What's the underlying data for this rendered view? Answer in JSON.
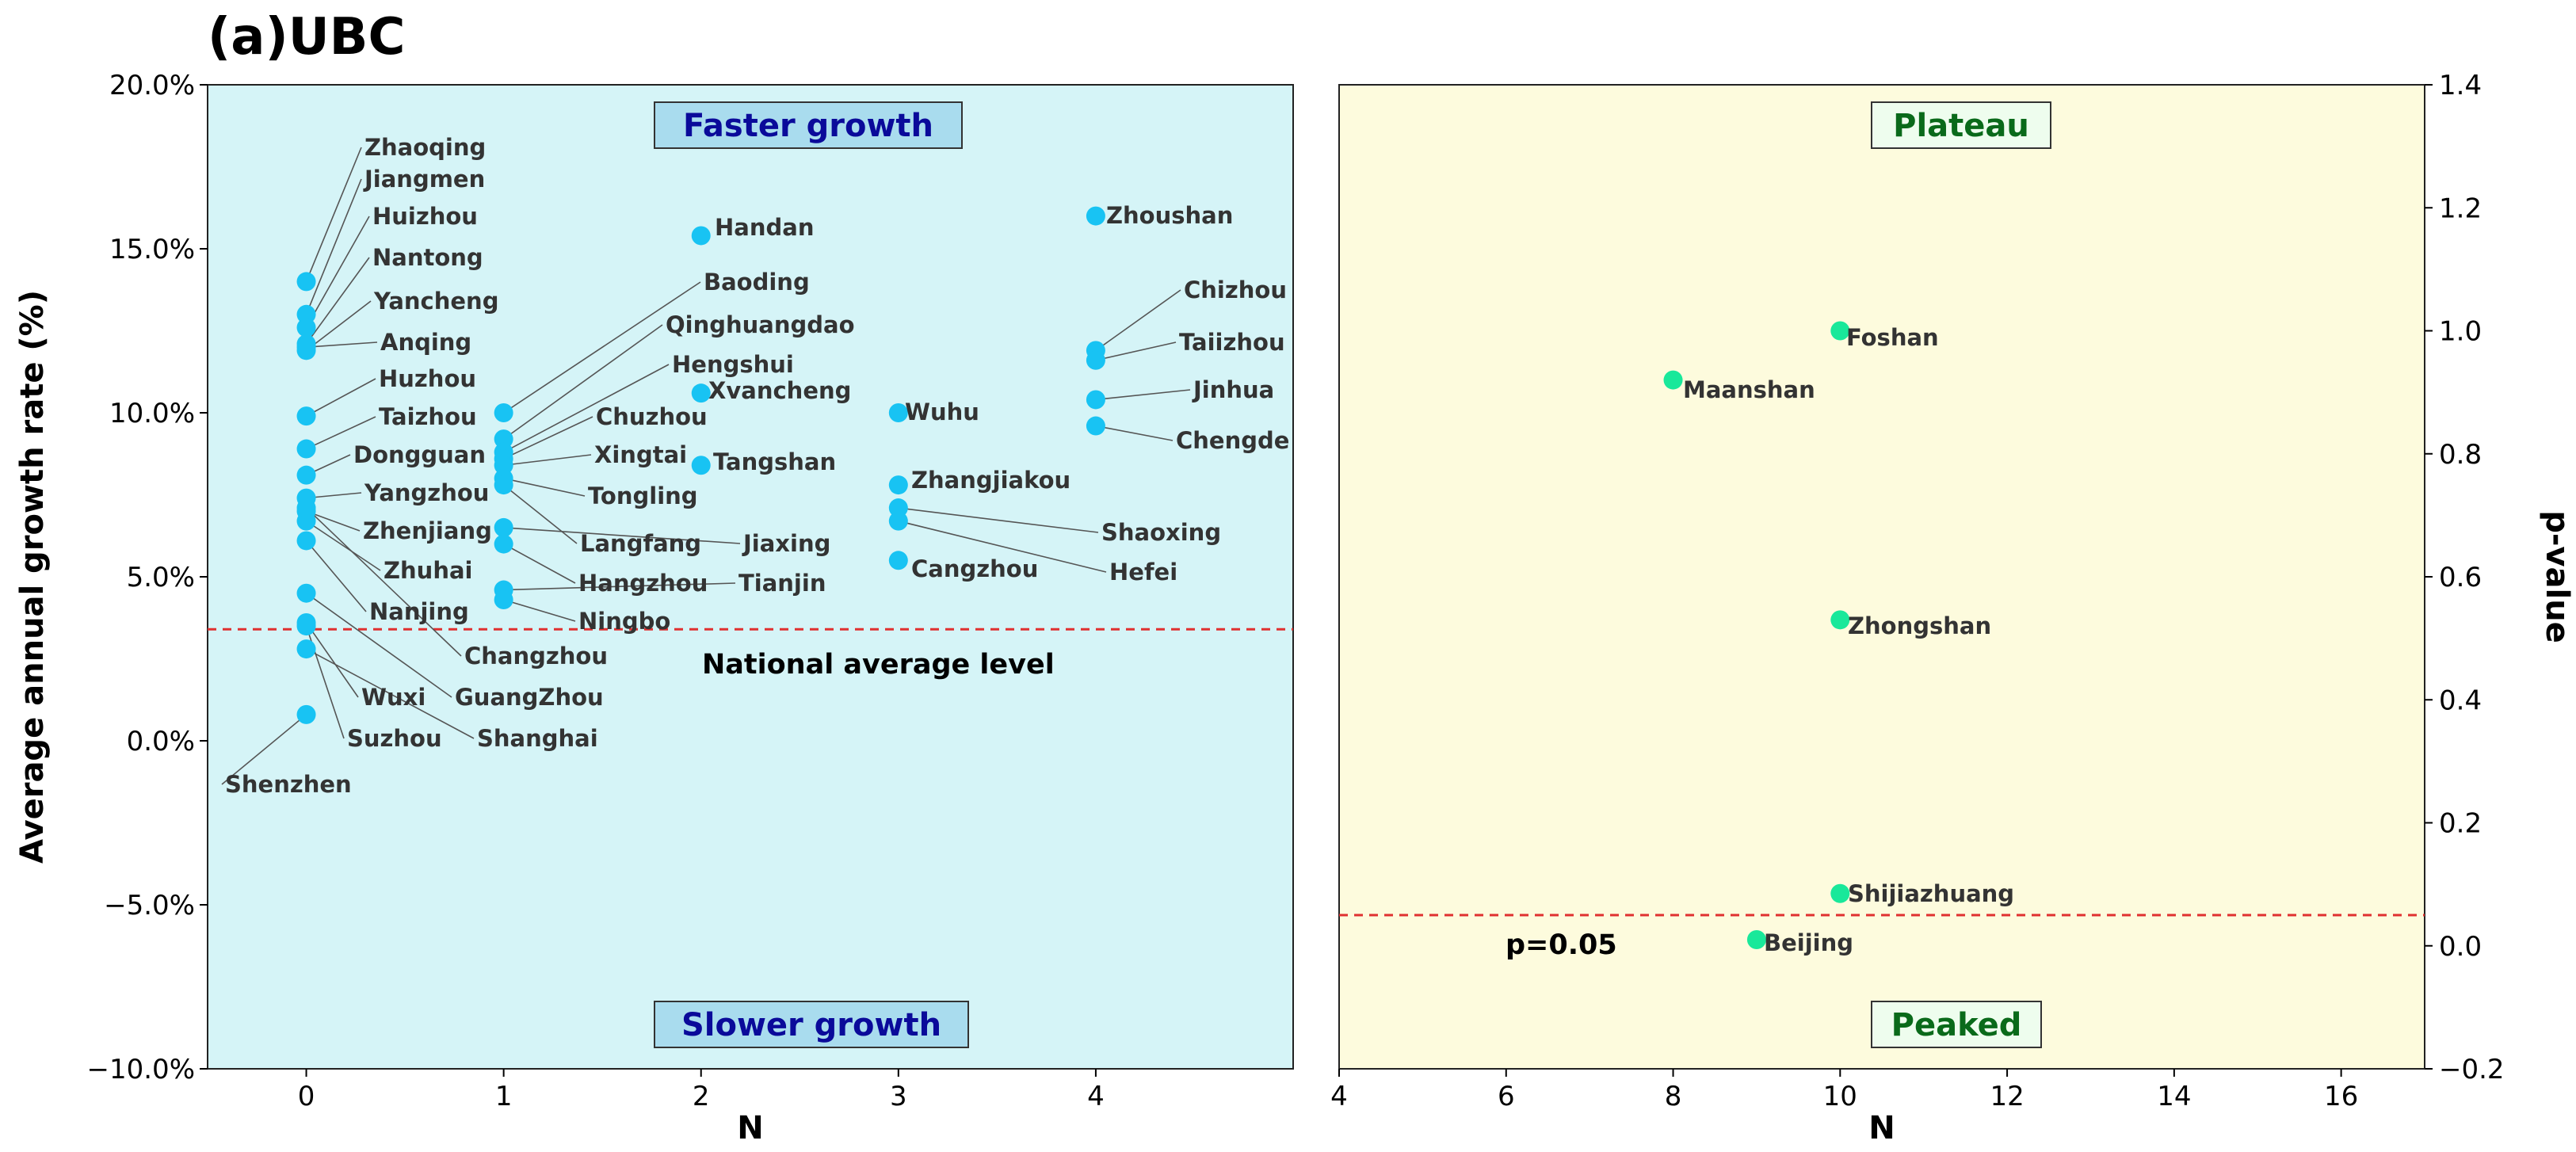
{
  "panel_title": "(a)UBC",
  "colors": {
    "left_bg": "#d5f4f7",
    "right_bg": "#fdfbdd",
    "left_points": "#18c3f3",
    "right_points": "#19e89a",
    "ref_line": "#e03030",
    "left_box_text": "#0a0a9a",
    "right_box_text": "#0a6a1a",
    "left_box_fill": "#a9dcee",
    "right_box_fill": "#eefdee"
  },
  "chart_data": [
    {
      "type": "scatter",
      "title": "(a)UBC",
      "xlabel": "N",
      "ylabel": "Average annual growth rate (%)",
      "xlim": [
        -0.5,
        5.0
      ],
      "ylim": [
        -10,
        20
      ],
      "x_ticks": [
        "0",
        "1",
        "2",
        "3",
        "4"
      ],
      "y_ticks": [
        "−10.0%",
        "−5.0%",
        "0.0%",
        "5.0%",
        "10.0%",
        "15.0%",
        "20.0%"
      ],
      "grid": false,
      "reference_line": {
        "y": 3.4,
        "label": "National average level"
      },
      "annotations": {
        "top": "Faster growth",
        "bottom": "Slower growth"
      },
      "points": [
        {
          "name": "Zhaoqing",
          "x": 0,
          "y": 14.0
        },
        {
          "name": "Jiangmen",
          "x": 0,
          "y": 13.0
        },
        {
          "name": "Huizhou",
          "x": 0,
          "y": 12.6
        },
        {
          "name": "Nantong",
          "x": 0,
          "y": 12.1
        },
        {
          "name": "Yancheng",
          "x": 0,
          "y": 11.9
        },
        {
          "name": "Anqing",
          "x": 0,
          "y": 12.0
        },
        {
          "name": "Huzhou",
          "x": 0,
          "y": 9.9
        },
        {
          "name": "Taizhou",
          "x": 0,
          "y": 8.9
        },
        {
          "name": "Dongguan",
          "x": 0,
          "y": 8.1
        },
        {
          "name": "Yangzhou",
          "x": 0,
          "y": 7.4
        },
        {
          "name": "Zhenjiang",
          "x": 0,
          "y": 7.0
        },
        {
          "name": "Zhuhai",
          "x": 0,
          "y": 6.7
        },
        {
          "name": "Nanjing",
          "x": 0,
          "y": 6.1
        },
        {
          "name": "Changzhou",
          "x": 0,
          "y": 7.1
        },
        {
          "name": "GuangZhou",
          "x": 0,
          "y": 4.5
        },
        {
          "name": "Wuxi",
          "x": 0,
          "y": 3.6
        },
        {
          "name": "Shanghai",
          "x": 0,
          "y": 2.8
        },
        {
          "name": "Suzhou",
          "x": 0,
          "y": 3.5
        },
        {
          "name": "Shenzhen",
          "x": 0,
          "y": 0.8
        },
        {
          "name": "Baoding",
          "x": 1,
          "y": 10.0
        },
        {
          "name": "Qinghuangdao",
          "x": 1,
          "y": 9.2
        },
        {
          "name": "Hengshui",
          "x": 1,
          "y": 8.8
        },
        {
          "name": "Chuzhou",
          "x": 1,
          "y": 8.6
        },
        {
          "name": "Xingtai",
          "x": 1,
          "y": 8.4
        },
        {
          "name": "Tongling",
          "x": 1,
          "y": 8.0
        },
        {
          "name": "Langfang",
          "x": 1,
          "y": 7.8
        },
        {
          "name": "Jiaxing",
          "x": 1,
          "y": 6.5
        },
        {
          "name": "Hangzhou",
          "x": 1,
          "y": 6.0
        },
        {
          "name": "Tianjin",
          "x": 1,
          "y": 4.6
        },
        {
          "name": "Ningbo",
          "x": 1,
          "y": 4.3
        },
        {
          "name": "Handan",
          "x": 2,
          "y": 15.4
        },
        {
          "name": "Xvancheng",
          "x": 2,
          "y": 10.6
        },
        {
          "name": "Tangshan",
          "x": 2,
          "y": 8.4
        },
        {
          "name": "Wuhu",
          "x": 3,
          "y": 10.0
        },
        {
          "name": "Zhangjiakou",
          "x": 3,
          "y": 7.8
        },
        {
          "name": "Shaoxing",
          "x": 3,
          "y": 7.1
        },
        {
          "name": "Hefei",
          "x": 3,
          "y": 6.7
        },
        {
          "name": "Cangzhou",
          "x": 3,
          "y": 5.5
        },
        {
          "name": "Zhoushan",
          "x": 4,
          "y": 16.0
        },
        {
          "name": "Chizhou",
          "x": 4,
          "y": 11.9
        },
        {
          "name": "Taiizhou",
          "x": 4,
          "y": 11.6
        },
        {
          "name": "Jinhua",
          "x": 4,
          "y": 10.4
        },
        {
          "name": "Chengde",
          "x": 4,
          "y": 9.6
        }
      ]
    },
    {
      "type": "scatter",
      "xlabel": "N",
      "ylabel": "p-value",
      "xlim": [
        4,
        17
      ],
      "ylim": [
        -0.2,
        1.4
      ],
      "x_ticks": [
        "4",
        "6",
        "8",
        "10",
        "12",
        "14",
        "16"
      ],
      "y_ticks": [
        "−0.2",
        "0.0",
        "0.2",
        "0.4",
        "0.6",
        "0.8",
        "1.0",
        "1.2",
        "1.4"
      ],
      "grid": false,
      "reference_line": {
        "y": 0.05,
        "label": "p=0.05"
      },
      "annotations": {
        "top": "Plateau",
        "bottom": "Peaked"
      },
      "points": [
        {
          "name": "Foshan",
          "x": 10,
          "y": 1.0
        },
        {
          "name": "Maanshan",
          "x": 8,
          "y": 0.92
        },
        {
          "name": "Zhongshan",
          "x": 10,
          "y": 0.53
        },
        {
          "name": "Shijiazhuang",
          "x": 10,
          "y": 0.085
        },
        {
          "name": "Beijing",
          "x": 9,
          "y": 0.01
        }
      ]
    }
  ]
}
